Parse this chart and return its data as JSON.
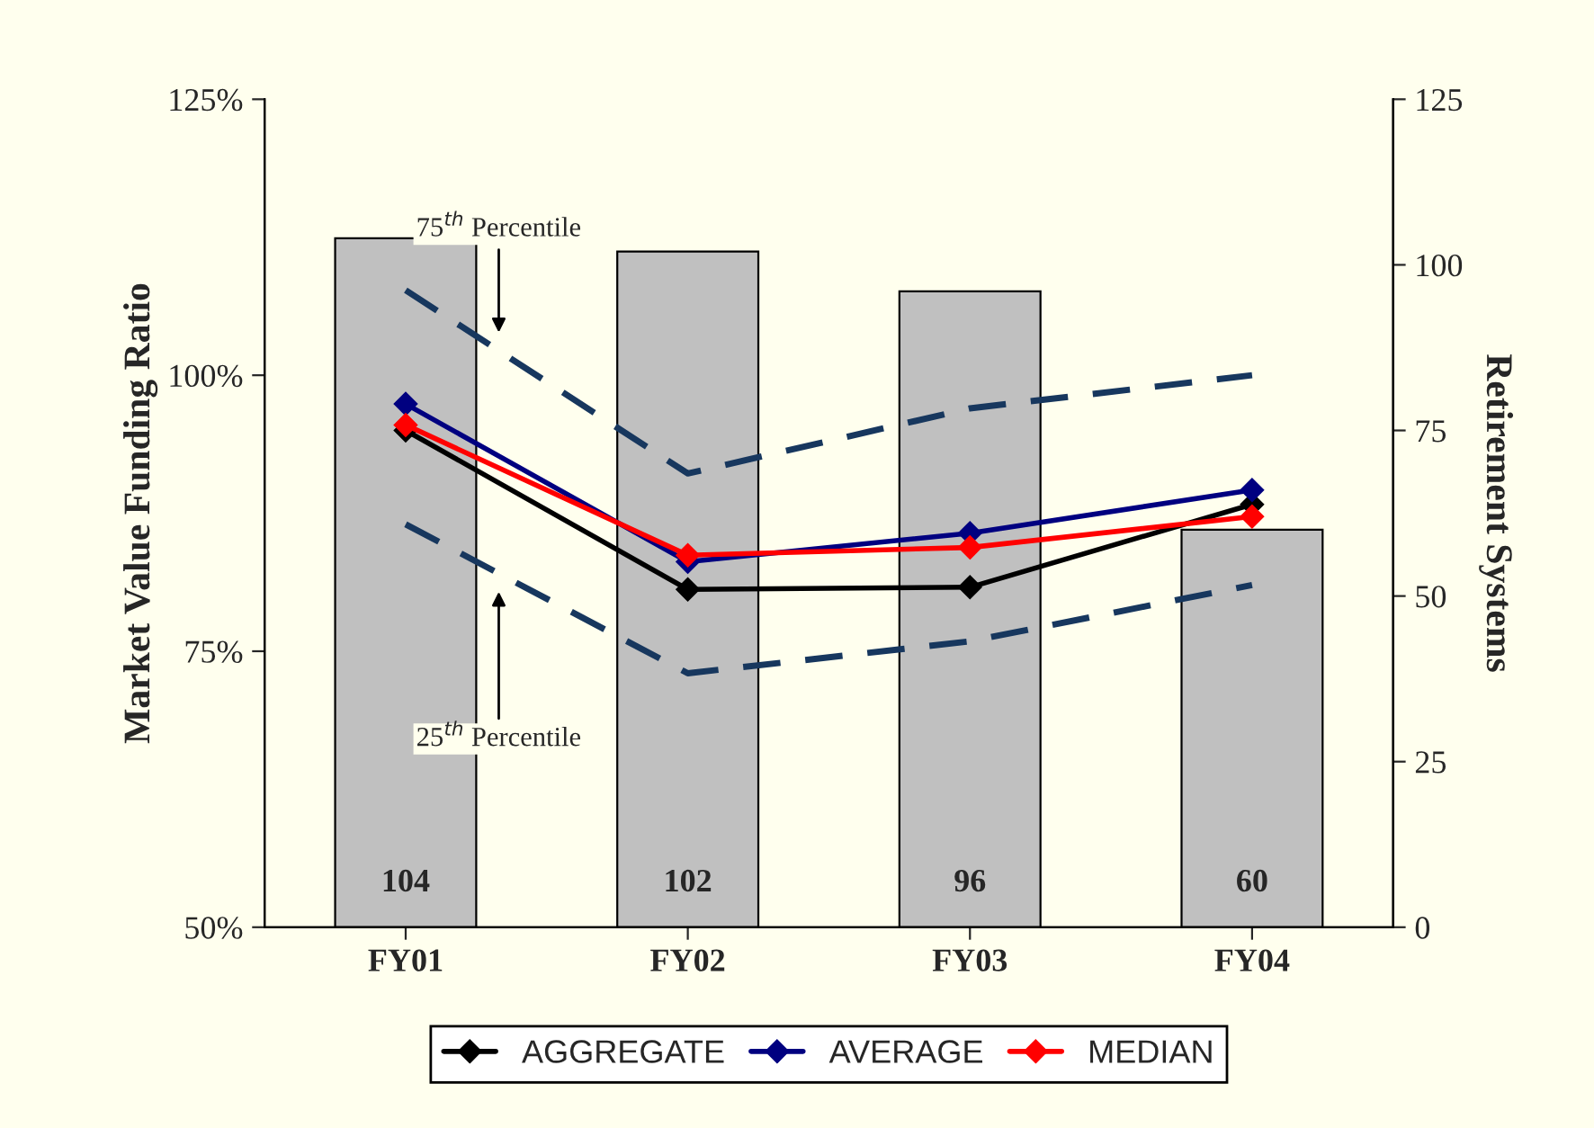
{
  "chart_data": {
    "type": "line",
    "categories": [
      "FY01",
      "FY02",
      "FY03",
      "FY04"
    ],
    "ylabel": "Market Value Funding Ratio",
    "y2label": "Retirement Systems",
    "ylim": [
      50,
      125
    ],
    "yticks": [
      {
        "value": 50,
        "label": "50%"
      },
      {
        "value": 75,
        "label": "75%"
      },
      {
        "value": 100,
        "label": "100%"
      },
      {
        "value": 125,
        "label": "125%"
      }
    ],
    "y2lim": [
      0,
      125
    ],
    "y2ticks": [
      0,
      25,
      50,
      75,
      100,
      125
    ],
    "series": [
      {
        "type": "bar",
        "axis": "y2",
        "color": "#c0c0c0",
        "values": [
          104,
          102,
          96,
          60
        ],
        "data_labels": true
      },
      {
        "color": "#17375e",
        "line_style": "dashed",
        "marker": "none",
        "values": [
          107.7,
          91.1,
          97.0,
          100.0
        ]
      },
      {
        "color": "#17375e",
        "line_style": "dashed",
        "marker": "none",
        "values": [
          86.5,
          73.0,
          75.9,
          81.0
        ]
      },
      {
        "name": "AGGREGATE",
        "color": "#000000",
        "marker": "diamond",
        "line_style": "solid",
        "values": [
          95.0,
          80.6,
          80.8,
          88.3
        ]
      },
      {
        "name": "AVERAGE",
        "color": "#000080",
        "marker": "diamond",
        "line_style": "solid",
        "values": [
          97.4,
          83.1,
          85.7,
          89.6
        ]
      },
      {
        "name": "MEDIAN",
        "color": "#ff0000",
        "marker": "diamond",
        "line_style": "solid",
        "values": [
          95.5,
          83.7,
          84.4,
          87.2
        ]
      }
    ],
    "annotations": [
      "75$^{th}$ Percentile",
      "25$^{th}$ Percentile"
    ],
    "legend": "bottom",
    "grid": false
  }
}
